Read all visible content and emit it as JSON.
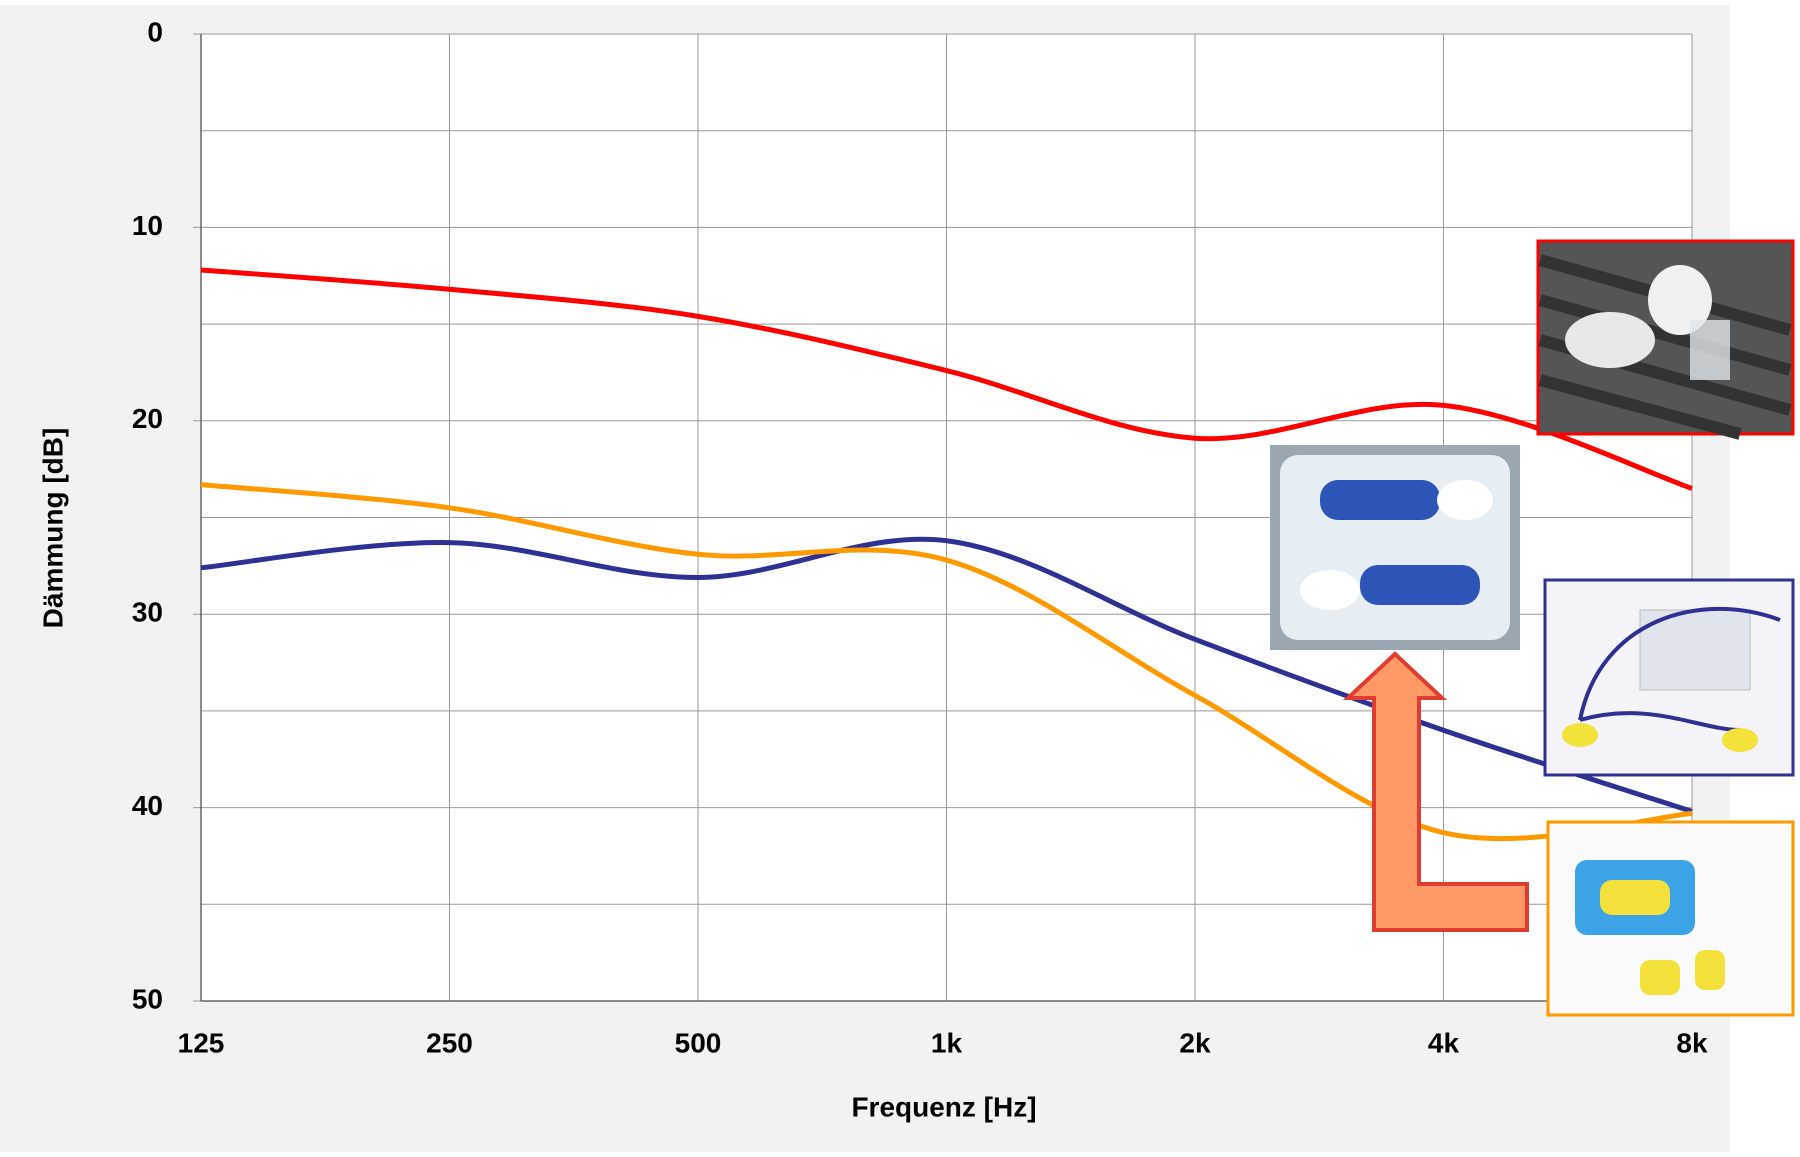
{
  "chart_data": {
    "type": "line",
    "x_label": "Frequenz [Hz]",
    "y_label": "Dämmung [dB]",
    "x": [
      125,
      250,
      500,
      1000,
      2000,
      4000,
      8000
    ],
    "series": [
      {
        "color": "#ff0000",
        "values": [
          12.2,
          13.2,
          14.6,
          17.4,
          20.9,
          19.2,
          23.5
        ]
      },
      {
        "color": "#2e3192",
        "values": [
          27.6,
          26.3,
          28.1,
          26.2,
          31.3,
          36.0,
          40.2
        ]
      },
      {
        "color": "#ff9900",
        "values": [
          23.3,
          24.5,
          26.9,
          27.2,
          34.2,
          41.3,
          40.3
        ]
      }
    ],
    "xscale": "log",
    "xlim": [
      125,
      8000
    ],
    "xticks": [
      125,
      250,
      500,
      {
        "value": 1000,
        "label": "1k"
      },
      {
        "value": 2000,
        "label": "2k"
      },
      {
        "value": 4000,
        "label": "4k"
      },
      {
        "value": 8000,
        "label": "8k"
      }
    ],
    "ylim": [
      50,
      0
    ],
    "yticks": [
      0,
      10,
      20,
      30,
      40,
      50
    ],
    "minor_yticks": [
      5,
      15,
      25,
      35,
      45
    ],
    "grid": true
  }
}
